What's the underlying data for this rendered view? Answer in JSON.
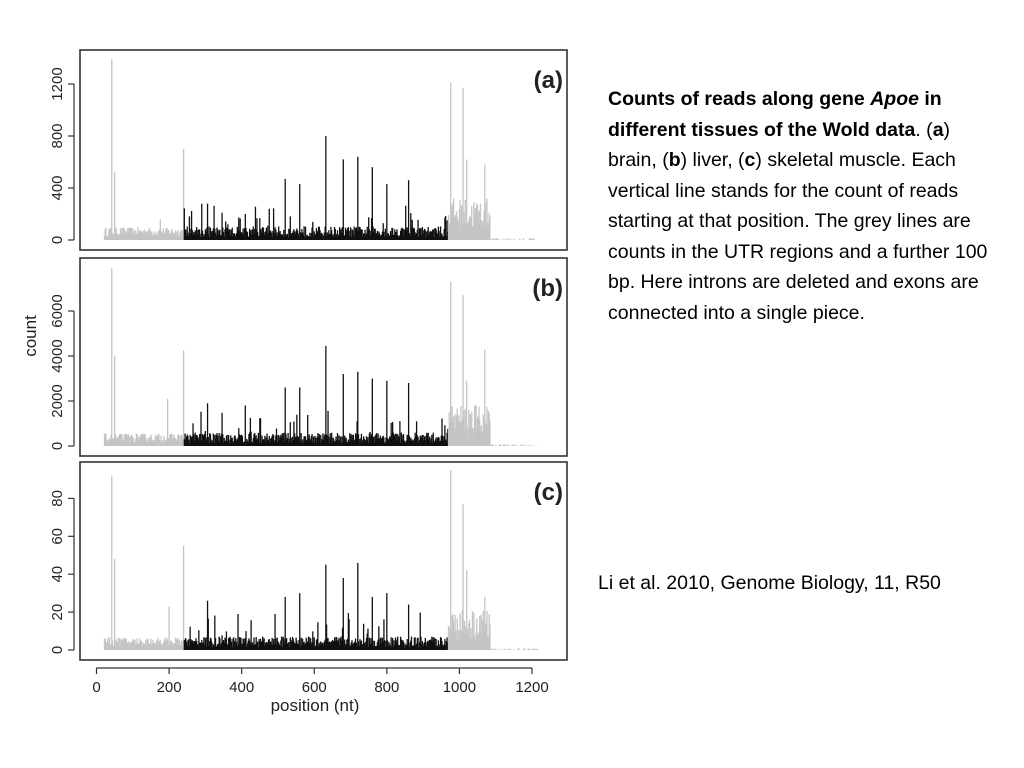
{
  "caption": {
    "title_part1": "Counts of reads along gene ",
    "title_gene": "Apoe",
    "title_part2": " in different tissues of the Wold data",
    "sep1": ". (",
    "a": "a",
    "a_text": ") brain, (",
    "b": "b",
    "b_text": ") liver, (",
    "c": "c",
    "rest": ") skeletal muscle. Each vertical line stands for the count of reads starting at that position. The grey lines are counts in the UTR regions and a further 100 bp. Here introns are deleted and exons are connected into a single piece."
  },
  "citation": "Li et al. 2010, Genome Biology, 11, R50",
  "chart_data": [
    {
      "type": "bar",
      "panel_label": "(a)",
      "tissue": "brain",
      "xlabel": "",
      "ylabel": "",
      "xlim": [
        0,
        1250
      ],
      "ylim": [
        0,
        1400
      ],
      "yticks": [
        0,
        400,
        800,
        1200
      ],
      "utr_regions_nt": [
        [
          0,
          240
        ],
        [
          970,
          1220
        ]
      ],
      "peaks": [
        [
          42,
          1390
        ],
        [
          50,
          520
        ],
        [
          175,
          160
        ],
        [
          240,
          700
        ],
        [
          305,
          280
        ],
        [
          410,
          200
        ],
        [
          475,
          240
        ],
        [
          520,
          470
        ],
        [
          560,
          430
        ],
        [
          632,
          800
        ],
        [
          680,
          620
        ],
        [
          720,
          640
        ],
        [
          760,
          560
        ],
        [
          800,
          430
        ],
        [
          860,
          460
        ],
        [
          975,
          1210
        ],
        [
          1010,
          1170
        ],
        [
          1020,
          620
        ],
        [
          1070,
          580
        ]
      ]
    },
    {
      "type": "bar",
      "panel_label": "(b)",
      "tissue": "liver",
      "xlabel": "",
      "ylabel": "count",
      "xlim": [
        0,
        1250
      ],
      "ylim": [
        0,
        8000
      ],
      "yticks": [
        0,
        2000,
        4000,
        6000
      ],
      "utr_regions_nt": [
        [
          0,
          240
        ],
        [
          970,
          1220
        ]
      ],
      "peaks": [
        [
          42,
          7900
        ],
        [
          50,
          4000
        ],
        [
          195,
          2100
        ],
        [
          240,
          4250
        ],
        [
          305,
          1900
        ],
        [
          410,
          1800
        ],
        [
          520,
          2600
        ],
        [
          560,
          2600
        ],
        [
          632,
          4450
        ],
        [
          680,
          3200
        ],
        [
          720,
          3300
        ],
        [
          760,
          3000
        ],
        [
          800,
          2900
        ],
        [
          860,
          2800
        ],
        [
          975,
          7300
        ],
        [
          1010,
          6700
        ],
        [
          1020,
          2900
        ],
        [
          1070,
          4300
        ]
      ]
    },
    {
      "type": "bar",
      "panel_label": "(c)",
      "tissue": "skeletal muscle",
      "xlabel": "position (nt)",
      "ylabel": "",
      "xlim": [
        0,
        1250
      ],
      "ylim": [
        0,
        95
      ],
      "yticks": [
        0,
        20,
        40,
        60,
        80
      ],
      "xticks": [
        0,
        200,
        400,
        600,
        800,
        1000,
        1200
      ],
      "utr_regions_nt": [
        [
          0,
          240
        ],
        [
          970,
          1220
        ]
      ],
      "peaks": [
        [
          42,
          92
        ],
        [
          50,
          48
        ],
        [
          200,
          23
        ],
        [
          240,
          55
        ],
        [
          305,
          26
        ],
        [
          520,
          28
        ],
        [
          560,
          30
        ],
        [
          632,
          45
        ],
        [
          680,
          38
        ],
        [
          720,
          46
        ],
        [
          760,
          28
        ],
        [
          800,
          30
        ],
        [
          860,
          24
        ],
        [
          975,
          95
        ],
        [
          1010,
          77
        ],
        [
          1020,
          42
        ],
        [
          1070,
          28
        ]
      ]
    }
  ]
}
